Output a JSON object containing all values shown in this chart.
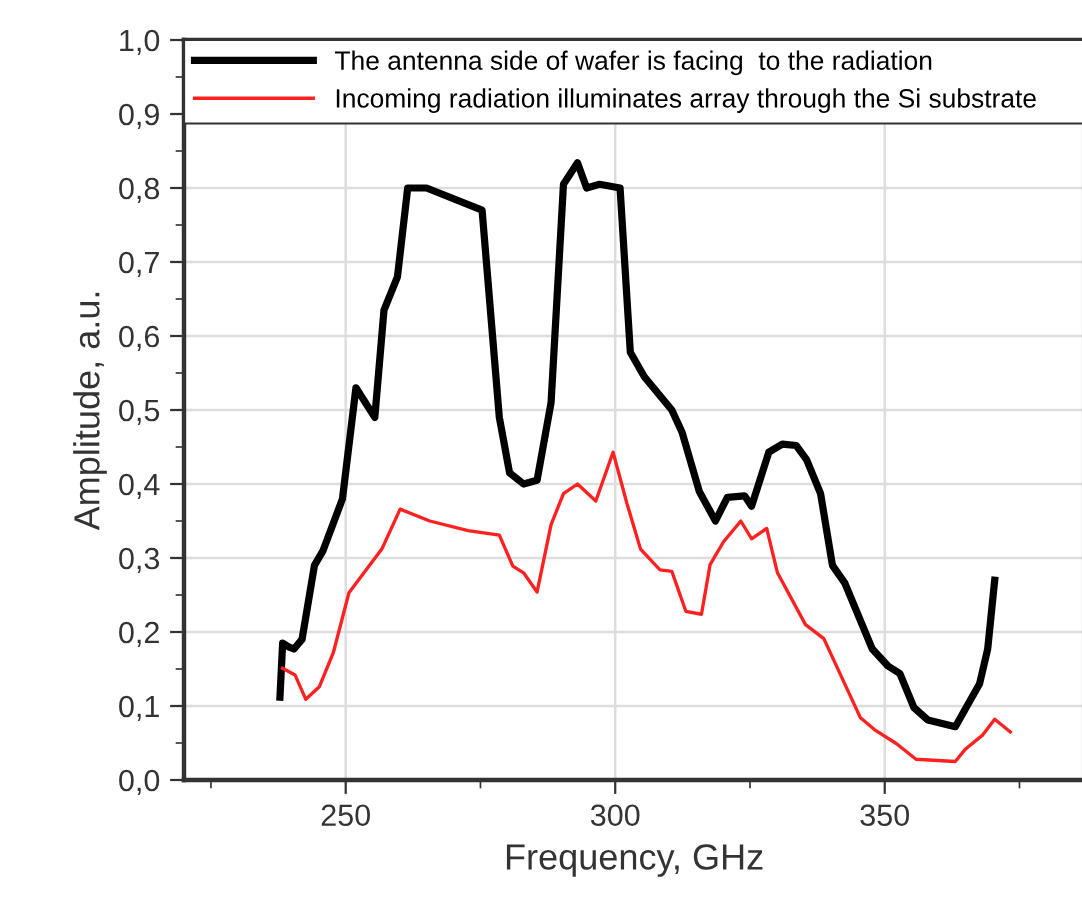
{
  "chart_data": {
    "type": "line",
    "xlabel": "Frequency, GHz",
    "ylabel": "Amplitude, a.u.",
    "xlim": [
      220,
      387
    ],
    "xticks": [
      {
        "value": 225,
        "label": null
      },
      250,
      {
        "value": 275,
        "label": null
      },
      300,
      {
        "value": 325,
        "label": null
      },
      350,
      {
        "value": 375,
        "label": null
      }
    ],
    "ylim": [
      0,
      1.0
    ],
    "yticks": [
      {
        "value": 0,
        "label": "0,0"
      },
      {
        "value": 0.05,
        "label": null
      },
      {
        "value": 0.1,
        "label": "0,1"
      },
      {
        "value": 0.15,
        "label": null
      },
      {
        "value": 0.2,
        "label": "0,2"
      },
      {
        "value": 0.25,
        "label": null
      },
      {
        "value": 0.3,
        "label": "0,3"
      },
      {
        "value": 0.35,
        "label": null
      },
      {
        "value": 0.4,
        "label": "0,4"
      },
      {
        "value": 0.45,
        "label": null
      },
      {
        "value": 0.5,
        "label": "0,5"
      },
      {
        "value": 0.55,
        "label": null
      },
      {
        "value": 0.6,
        "label": "0,6"
      },
      {
        "value": 0.65,
        "label": null
      },
      {
        "value": 0.7,
        "label": "0,7"
      },
      {
        "value": 0.75,
        "label": null
      },
      {
        "value": 0.8,
        "label": "0,8"
      },
      {
        "value": 0.85,
        "label": null
      },
      {
        "value": 0.9,
        "label": "0,9"
      },
      {
        "value": 0.95,
        "label": null
      },
      {
        "value": 1.0,
        "label": "1,0"
      }
    ],
    "grid": true,
    "legend": "top",
    "marker": "none",
    "line_style": "solid",
    "series": [
      {
        "name": "The antenna side of wafer is facing  to the radiation",
        "color": "#000000",
        "x": [
          237.8,
          238.3,
          239.4,
          240.4,
          241.9,
          244.2,
          245.8,
          249.4,
          251.9,
          255.4,
          257.1,
          259.6,
          261.5,
          265.0,
          275.3,
          278.5,
          280.4,
          283.0,
          285.5,
          288.1,
          290.4,
          293.0,
          294.7,
          297.1,
          300.9,
          302.8,
          305.4,
          310.5,
          312.4,
          315.6,
          318.6,
          320.8,
          324.0,
          325.3,
          328.5,
          331.0,
          333.6,
          335.5,
          338.1,
          340.3,
          342.6,
          347.7,
          350.6,
          352.8,
          355.4,
          358.0,
          363.1,
          367.6,
          369.1,
          370.4
        ],
        "values": [
          0.112,
          0.185,
          0.18,
          0.177,
          0.19,
          0.29,
          0.31,
          0.38,
          0.53,
          0.49,
          0.635,
          0.68,
          0.8,
          0.8,
          0.77,
          0.49,
          0.415,
          0.4,
          0.405,
          0.51,
          0.805,
          0.834,
          0.8,
          0.805,
          0.8,
          0.578,
          0.545,
          0.5,
          0.47,
          0.39,
          0.35,
          0.382,
          0.384,
          0.37,
          0.443,
          0.454,
          0.452,
          0.433,
          0.387,
          0.29,
          0.266,
          0.177,
          0.154,
          0.144,
          0.098,
          0.081,
          0.072,
          0.13,
          0.177,
          0.27
        ]
      },
      {
        "name": "Incoming radiation illuminates array through the Si substrate",
        "color": "#ff2020",
        "x": [
          238.3,
          240.6,
          242.6,
          245.1,
          247.7,
          250.6,
          256.7,
          260.1,
          265.6,
          272.7,
          278.5,
          281.0,
          283.0,
          285.5,
          288.1,
          290.4,
          293.0,
          296.4,
          299.6,
          302.2,
          304.7,
          308.3,
          310.5,
          313.1,
          316.0,
          317.6,
          320.1,
          323.3,
          325.3,
          328.1,
          330.1,
          335.3,
          338.7,
          345.5,
          348.3,
          352.2,
          355.8,
          363.1,
          365.0,
          368.2,
          370.4,
          373.3
        ],
        "values": [
          0.151,
          0.142,
          0.109,
          0.126,
          0.172,
          0.253,
          0.312,
          0.366,
          0.35,
          0.337,
          0.331,
          0.289,
          0.28,
          0.254,
          0.345,
          0.387,
          0.4,
          0.377,
          0.443,
          0.373,
          0.312,
          0.284,
          0.282,
          0.228,
          0.224,
          0.291,
          0.322,
          0.35,
          0.326,
          0.34,
          0.28,
          0.21,
          0.191,
          0.084,
          0.067,
          0.049,
          0.028,
          0.025,
          0.042,
          0.061,
          0.082,
          0.065
        ]
      }
    ]
  }
}
